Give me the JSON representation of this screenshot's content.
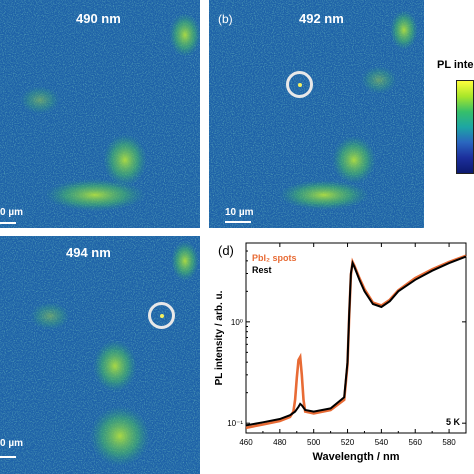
{
  "panels": {
    "a": {
      "title": "490 nm",
      "scalebar_label": "0 µm"
    },
    "b": {
      "letter": "(b)",
      "title": "492 nm",
      "scalebar_label": "10 µm"
    },
    "c": {
      "title": "494 nm",
      "scalebar_label": "0 µm"
    }
  },
  "colorbar": {
    "title": "PL inten",
    "colors": [
      "#ffff3c",
      "#a8e62a",
      "#36bf6a",
      "#1da6a4",
      "#2a66bf",
      "#1c2f9c",
      "#0d1a6e"
    ]
  },
  "panel_d_letter": "(d)",
  "chart_data": {
    "type": "line",
    "title": "",
    "xlabel": "Wavelength / nm",
    "ylabel": "PL intensity / arb. u.",
    "yscale": "log",
    "xlim": [
      460,
      590
    ],
    "ylim": [
      0.08,
      6
    ],
    "xticks": [
      460,
      480,
      500,
      520,
      540,
      560,
      580
    ],
    "yticks": [
      {
        "value": 0.1,
        "label": "10⁻¹"
      },
      {
        "value": 1,
        "label": "10⁰"
      }
    ],
    "annotation": "5 K",
    "legend_position": "top-left",
    "series": [
      {
        "name": "Rest",
        "color": "#000000",
        "x": [
          460,
          470,
          480,
          486,
          489,
          491,
          492,
          493,
          495,
          500,
          510,
          518,
          520,
          521,
          522,
          523,
          524,
          527,
          530,
          535,
          540,
          545,
          550,
          560,
          570,
          580,
          590
        ],
        "y": [
          0.095,
          0.102,
          0.11,
          0.12,
          0.13,
          0.145,
          0.155,
          0.15,
          0.135,
          0.13,
          0.14,
          0.18,
          0.4,
          1.2,
          3.0,
          3.8,
          3.5,
          2.6,
          2.0,
          1.5,
          1.4,
          1.6,
          2.0,
          2.6,
          3.2,
          3.8,
          4.4
        ]
      },
      {
        "name": "PbI₂ spots",
        "color": "#e86b35",
        "x": [
          460,
          470,
          480,
          486,
          488,
          489,
          490,
          491,
          492,
          493,
          494,
          495,
          500,
          510,
          518,
          520,
          521,
          522,
          523,
          524,
          527,
          530,
          535,
          540,
          545,
          550,
          560,
          570,
          580,
          590
        ],
        "y": [
          0.09,
          0.097,
          0.105,
          0.115,
          0.13,
          0.17,
          0.28,
          0.42,
          0.45,
          0.3,
          0.17,
          0.13,
          0.125,
          0.135,
          0.17,
          0.38,
          1.15,
          2.9,
          3.9,
          3.6,
          2.7,
          2.1,
          1.55,
          1.45,
          1.65,
          2.05,
          2.7,
          3.3,
          3.9,
          4.5
        ]
      }
    ]
  }
}
